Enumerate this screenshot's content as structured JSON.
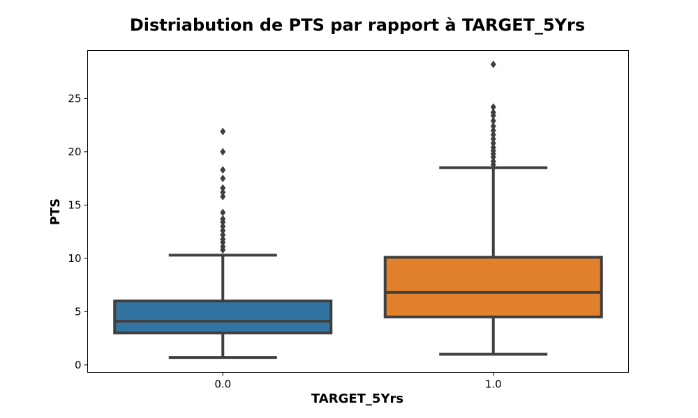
{
  "chart_data": {
    "type": "box",
    "title": "Distriabution de PTS par rapport à TARGET_5Yrs",
    "xlabel": "TARGET_5Yrs",
    "ylabel": "PTS",
    "ylim": [
      -0.7,
      29.5
    ],
    "yticks": [
      0,
      5,
      10,
      15,
      20,
      25
    ],
    "categories": [
      "0.0",
      "1.0"
    ],
    "grid": false,
    "boxes": [
      {
        "category": "0.0",
        "color": "#3274a1",
        "whisker_low": 0.7,
        "q1": 3.0,
        "median": 4.1,
        "q3": 6.0,
        "whisker_high": 10.3,
        "outliers": [
          10.8,
          11.1,
          11.5,
          11.8,
          12.2,
          12.6,
          13.0,
          13.4,
          13.7,
          14.3,
          15.8,
          16.2,
          16.6,
          17.5,
          18.3,
          20.0,
          21.9
        ]
      },
      {
        "category": "1.0",
        "color": "#e1812c",
        "whisker_low": 1.0,
        "q1": 4.5,
        "median": 6.8,
        "q3": 10.1,
        "whisker_high": 18.5,
        "outliers": [
          18.8,
          19.1,
          19.5,
          19.8,
          20.1,
          20.4,
          20.8,
          21.2,
          21.6,
          22.0,
          22.4,
          22.9,
          23.4,
          23.7,
          24.2,
          28.2
        ]
      }
    ]
  }
}
